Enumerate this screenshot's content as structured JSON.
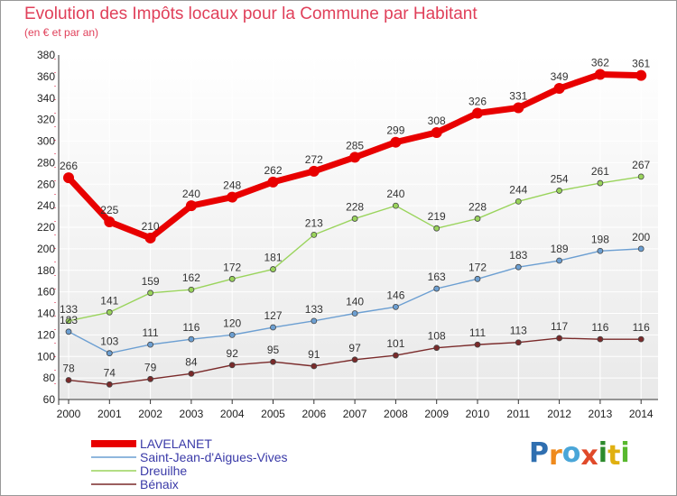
{
  "title": "Evolution des Impôts locaux pour la Commune par Habitant",
  "subtitle": "(en € et par an)",
  "logo": {
    "letters": [
      "P",
      "r",
      "o",
      "x",
      "i",
      "t",
      "i"
    ],
    "colors": [
      "#2f6fb0",
      "#ef8a1c",
      "#4aa6d8",
      "#e04a2a",
      "#2c8a2c",
      "#e0b010",
      "#58b82e"
    ]
  },
  "chart_data": {
    "type": "line",
    "title": "Evolution des Impôts locaux pour la Commune par Habitant",
    "subtitle": "(en € et par an)",
    "xlabel": "",
    "ylabel": "",
    "ylim": [
      60,
      380
    ],
    "yticks": [
      60,
      80,
      100,
      120,
      140,
      160,
      180,
      200,
      220,
      240,
      260,
      280,
      300,
      320,
      340,
      360,
      380
    ],
    "grid": true,
    "legend_position": "bottom-left",
    "categories": [
      "2000",
      "2001",
      "2002",
      "2003",
      "2004",
      "2005",
      "2006",
      "2007",
      "2008",
      "2009",
      "2010",
      "2011",
      "2012",
      "2013",
      "2014"
    ],
    "series": [
      {
        "name": "LAVELANET",
        "color": "#e80000",
        "values": [
          266,
          225,
          210,
          240,
          248,
          262,
          272,
          285,
          299,
          308,
          326,
          331,
          349,
          362,
          361
        ]
      },
      {
        "name": "Saint-Jean-d'Aigues-Vives",
        "color": "#6c9fd2",
        "values": [
          123,
          103,
          111,
          116,
          120,
          127,
          133,
          140,
          146,
          163,
          172,
          183,
          189,
          198,
          200
        ]
      },
      {
        "name": "Dreuilhe",
        "color": "#9ad45c",
        "values": [
          133,
          141,
          159,
          162,
          172,
          181,
          213,
          228,
          240,
          219,
          228,
          244,
          254,
          261,
          267
        ]
      },
      {
        "name": "Bénaix",
        "color": "#7a2a2a",
        "values": [
          78,
          74,
          79,
          84,
          92,
          95,
          91,
          97,
          101,
          108,
          111,
          113,
          117,
          116,
          116
        ]
      }
    ]
  }
}
